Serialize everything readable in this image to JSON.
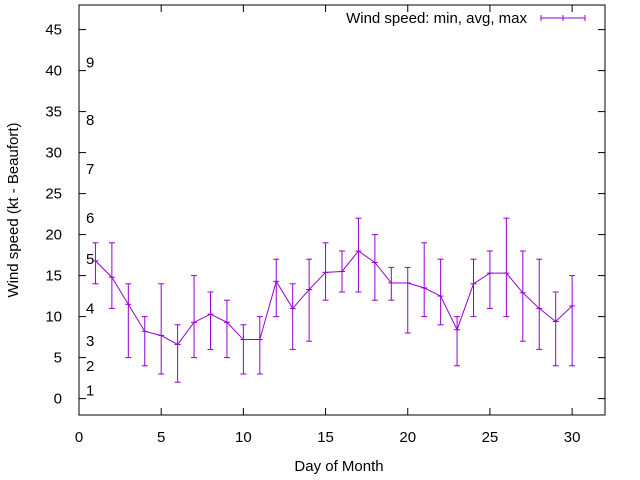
{
  "chart_data": {
    "type": "line",
    "title": "",
    "xlabel": "Day of Month",
    "ylabel": "Wind speed (kt - Beaufort)",
    "xlim": [
      0,
      32
    ],
    "ylim": [
      -2,
      48
    ],
    "x_ticks": [
      0,
      5,
      10,
      15,
      20,
      25,
      30
    ],
    "y_ticks": [
      0,
      5,
      10,
      15,
      20,
      25,
      30,
      35,
      40,
      45
    ],
    "beaufort_labels": [
      {
        "label": "1",
        "y": 1
      },
      {
        "label": "2",
        "y": 4
      },
      {
        "label": "3",
        "y": 7
      },
      {
        "label": "4",
        "y": 11
      },
      {
        "label": "5",
        "y": 17
      },
      {
        "label": "6",
        "y": 22
      },
      {
        "label": "7",
        "y": 28
      },
      {
        "label": "8",
        "y": 34
      },
      {
        "label": "9",
        "y": 41
      }
    ],
    "grid": false,
    "legend_position": "top-right",
    "series": [
      {
        "name": "Wind speed: min, avg, max",
        "color": "#9400d3",
        "x": [
          1,
          2,
          3,
          4,
          5,
          6,
          7,
          8,
          9,
          10,
          11,
          12,
          13,
          14,
          15,
          16,
          17,
          18,
          19,
          20,
          21,
          22,
          23,
          24,
          25,
          26,
          27,
          28,
          29,
          30
        ],
        "avg": [
          16.8,
          14.8,
          11.5,
          8.2,
          7.7,
          6.6,
          9.3,
          10.3,
          9.3,
          7.2,
          7.2,
          14.3,
          11.0,
          13.3,
          15.4,
          15.5,
          18.0,
          16.6,
          14.1,
          14.1,
          13.5,
          12.5,
          8.4,
          14.0,
          15.3,
          15.3,
          12.9,
          11.0,
          9.4,
          11.3
        ],
        "min": [
          14,
          11,
          5,
          4,
          3,
          2,
          5,
          6,
          5,
          3,
          3,
          10,
          6,
          7,
          12,
          13,
          13,
          12,
          12,
          8,
          10,
          9,
          4,
          10,
          11,
          10,
          7,
          6,
          4,
          4
        ],
        "max": [
          19,
          19,
          14,
          10,
          14,
          9,
          15,
          13,
          12,
          9,
          10,
          17,
          14,
          17,
          19,
          18,
          22,
          20,
          16,
          16,
          19,
          17,
          10,
          17,
          18,
          22,
          18,
          17,
          13,
          15
        ]
      }
    ]
  }
}
